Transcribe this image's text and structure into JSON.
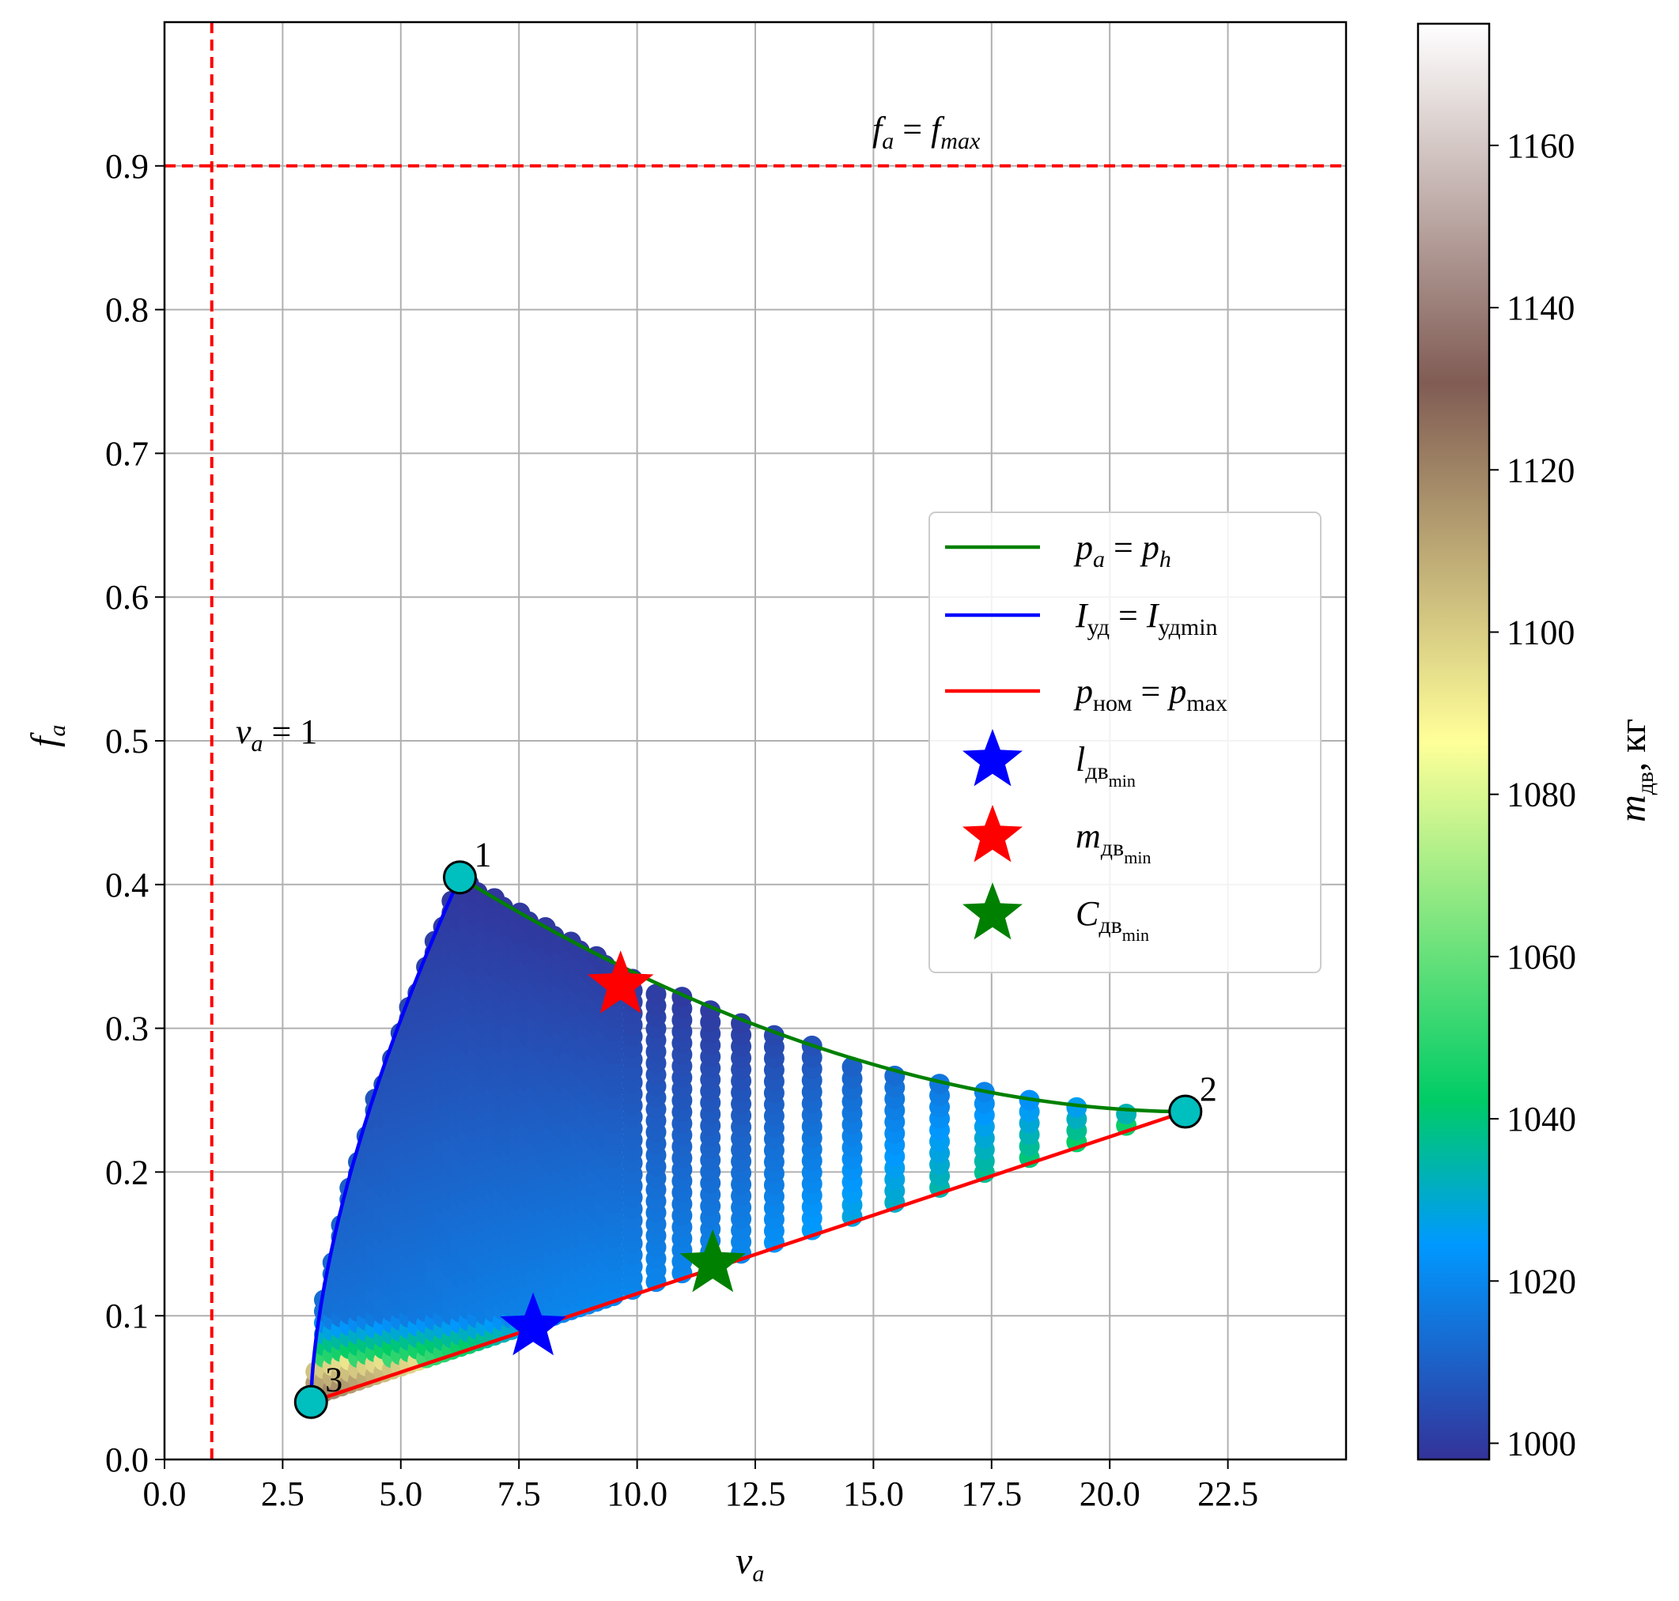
{
  "chart_data": {
    "type": "scatter",
    "xlabel": "v",
    "xlabel_sub": "a",
    "ylabel": "f",
    "ylabel_sub": "a",
    "xlim": [
      0,
      25
    ],
    "ylim": [
      0,
      1.0
    ],
    "x_ticks": [
      "0.0",
      "2.5",
      "5.0",
      "7.5",
      "10.0",
      "12.5",
      "15.0",
      "17.5",
      "20.0",
      "22.5"
    ],
    "x_tick_values": [
      0,
      2.5,
      5,
      7.5,
      10,
      12.5,
      15,
      17.5,
      20,
      22.5
    ],
    "y_ticks": [
      "0.0",
      "0.1",
      "0.2",
      "0.3",
      "0.4",
      "0.5",
      "0.6",
      "0.7",
      "0.8",
      "0.9"
    ],
    "y_tick_values": [
      0,
      0.1,
      0.2,
      0.3,
      0.4,
      0.5,
      0.6,
      0.7,
      0.8,
      0.9
    ],
    "grid": true,
    "colorbar": {
      "label_main": "m",
      "label_sub": "дв",
      "label_unit": ", кг",
      "range": [
        998,
        1175
      ],
      "ticks": [
        "1000",
        "1020",
        "1040",
        "1060",
        "1080",
        "1100",
        "1120",
        "1140",
        "1160"
      ],
      "tick_values": [
        1000,
        1020,
        1040,
        1060,
        1080,
        1100,
        1120,
        1140,
        1160
      ],
      "colormap": "terrain"
    },
    "reference_lines": [
      {
        "orientation": "vertical",
        "value": 1,
        "color": "#ff0000",
        "dash": true
      },
      {
        "orientation": "horizontal",
        "value": 0.9,
        "color": "#ff0000",
        "dash": true
      }
    ],
    "annotations": {
      "va_line": {
        "main": "v",
        "sub": "a",
        "rest": " = 1",
        "x": 1.5,
        "y": 0.5
      },
      "fa_line": {
        "main": "f",
        "sub": "a",
        "eq": " = ",
        "main2": "f",
        "sub2": "max",
        "x": 15,
        "y": 0.915
      }
    },
    "vertices": [
      {
        "label": "1",
        "x": 6.25,
        "y": 0.405
      },
      {
        "label": "2",
        "x": 21.6,
        "y": 0.242
      },
      {
        "label": "3",
        "x": 3.1,
        "y": 0.04
      }
    ],
    "boundary_curves": [
      {
        "name_parts": [
          "p",
          "a",
          " = ",
          "p",
          "h"
        ],
        "color": "#008000",
        "from": "1",
        "to": "2"
      },
      {
        "name_parts": [
          "I",
          "уд",
          " = ",
          "I",
          "удmin"
        ],
        "color": "#0000ff",
        "from": "3",
        "to": "1"
      },
      {
        "name_parts": [
          "p",
          "ном",
          " = ",
          "p",
          "max"
        ],
        "color": "#ff0000",
        "from": "3",
        "to": "2"
      }
    ],
    "optimum_points": [
      {
        "name_main": "l",
        "name_sub": "дв",
        "name_subsub": "min",
        "x": 7.8,
        "y": 0.092,
        "color": "#0000ff"
      },
      {
        "name_main": "m",
        "name_sub": "дв",
        "name_subsub": "min",
        "x": 9.65,
        "y": 0.33,
        "color": "#ff0000"
      },
      {
        "name_main": "C",
        "name_sub": "дв",
        "name_subsub": "min",
        "x": 11.6,
        "y": 0.136,
        "color": "#008000"
      }
    ],
    "legend_position": "center-right"
  }
}
